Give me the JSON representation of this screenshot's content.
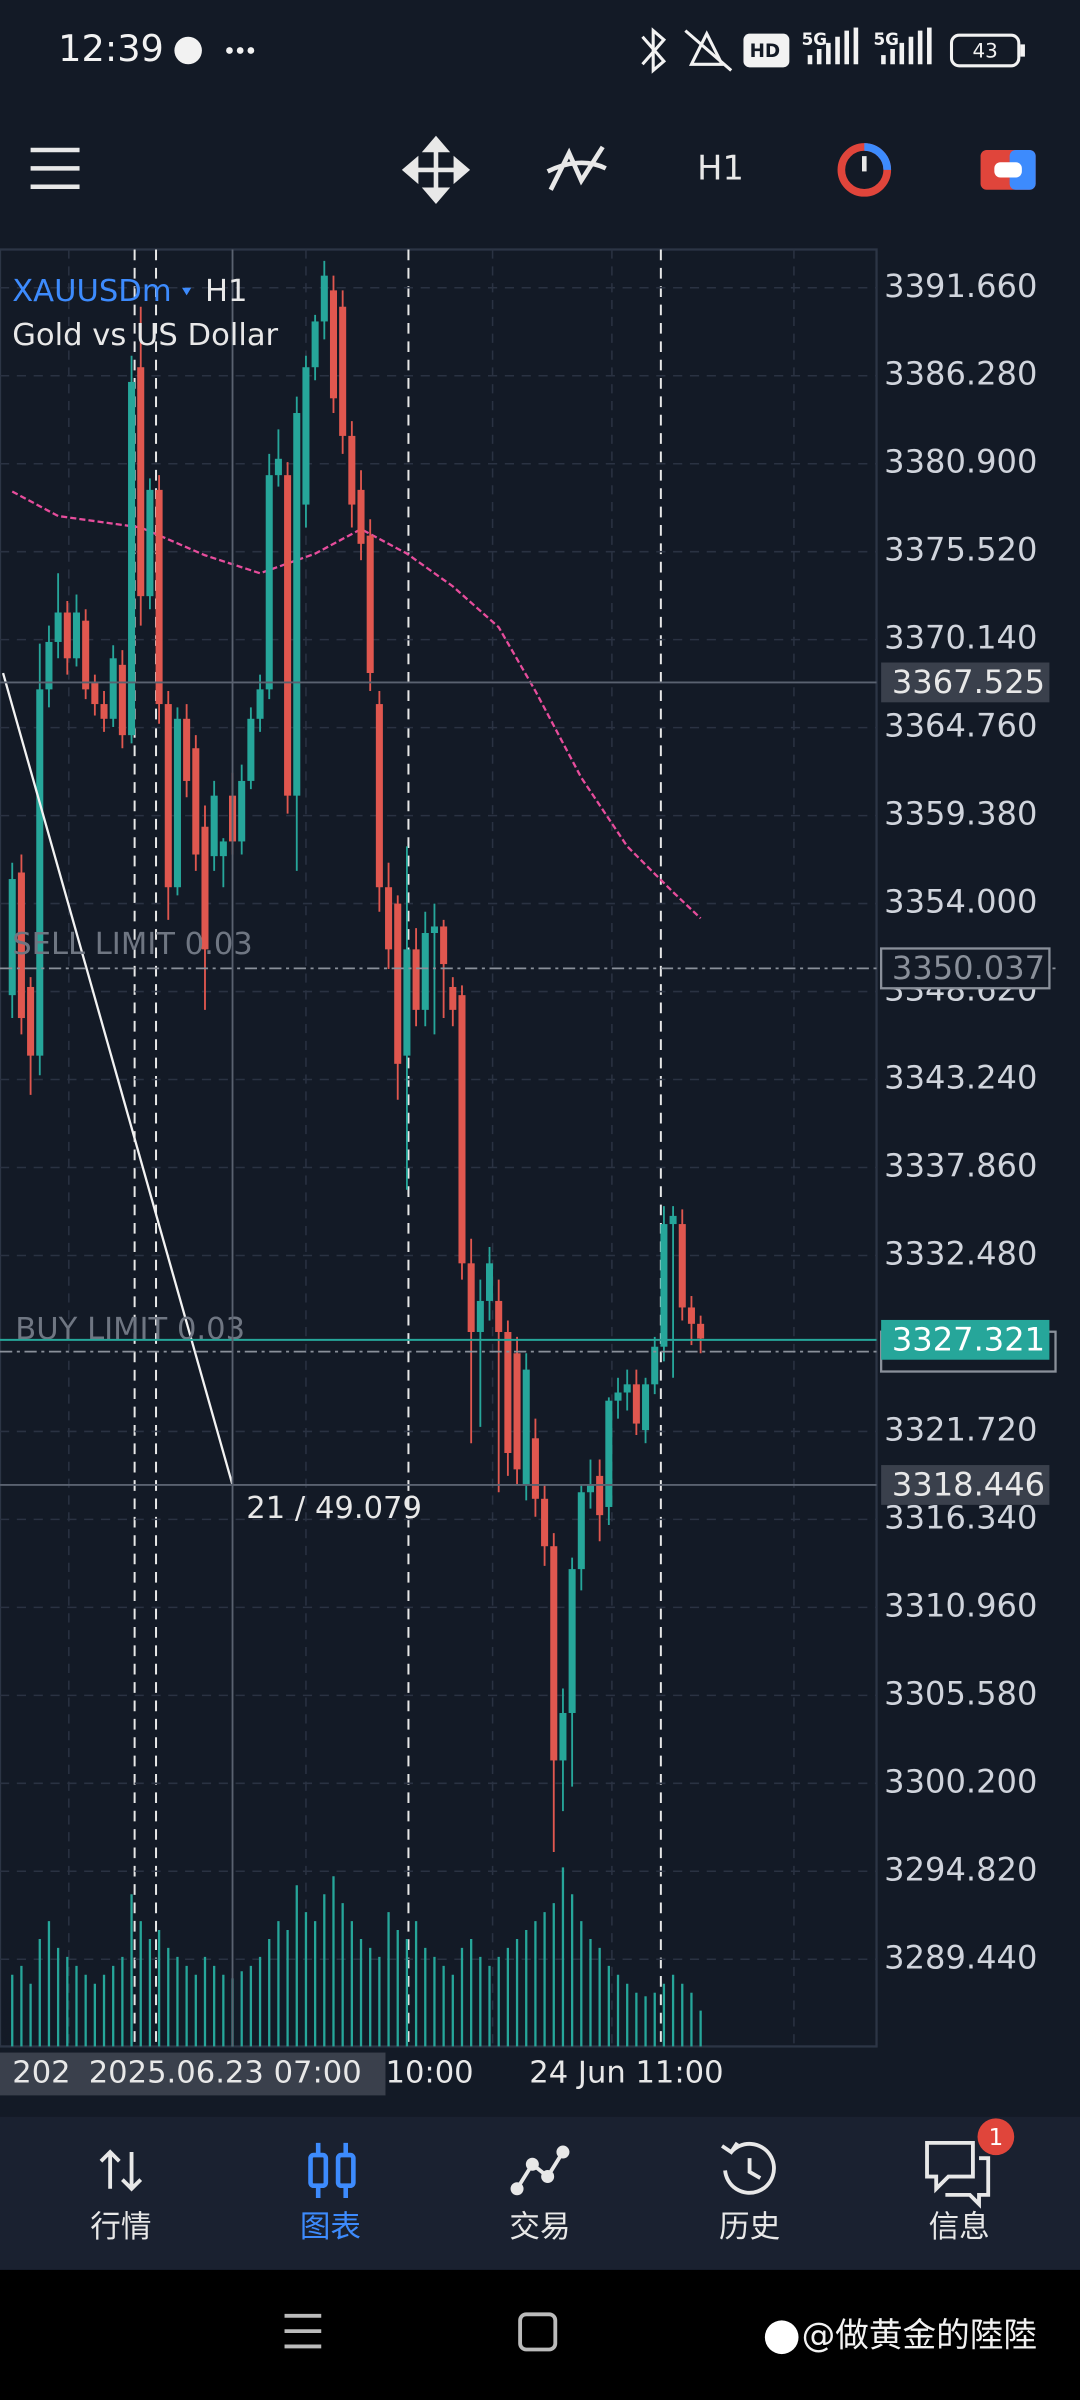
{
  "status_bar": {
    "time": "12:39",
    "network": [
      "5G",
      "5G"
    ],
    "hd": "HD",
    "battery": "43"
  },
  "toolbar": {
    "timeframe": "H1"
  },
  "chart": {
    "symbol": "XAUUSDm",
    "timeframe": "H1",
    "description": "Gold vs US Dollar",
    "ylim": [
      3284.11,
      3394.0
    ],
    "yticks": [
      {
        "value": 3391.66,
        "label": "3391.660"
      },
      {
        "value": 3386.28,
        "label": "3386.280"
      },
      {
        "value": 3380.9,
        "label": "3380.900"
      },
      {
        "value": 3375.52,
        "label": "3375.520"
      },
      {
        "value": 3370.14,
        "label": "3370.140"
      },
      {
        "value": 3364.76,
        "label": "3364.760"
      },
      {
        "value": 3359.38,
        "label": "3359.380"
      },
      {
        "value": 3354,
        "label": "3354.000"
      },
      {
        "value": 3348.62,
        "label": "3348.620"
      },
      {
        "value": 3343.24,
        "label": "3343.240"
      },
      {
        "value": 3337.86,
        "label": "3337.860"
      },
      {
        "value": 3332.48,
        "label": "3332.480"
      },
      {
        "value": 3321.72,
        "label": "3321.720"
      },
      {
        "value": 3316.34,
        "label": "3316.340"
      },
      {
        "value": 3310.96,
        "label": "3310.960"
      },
      {
        "value": 3305.58,
        "label": "3305.580"
      },
      {
        "value": 3300.2,
        "label": "3300.200"
      },
      {
        "value": 3294.82,
        "label": "3294.820"
      },
      {
        "value": 3289.44,
        "label": "3289.440"
      }
    ],
    "candles": [
      [
        3348.4,
        3356.5,
        3347.0,
        3355.5
      ],
      [
        3355.9,
        3357.0,
        3346.0,
        3347.0
      ],
      [
        3348.9,
        3349.5,
        3342.3,
        3344.7
      ],
      [
        3344.7,
        3369.9,
        3343.5,
        3367.1
      ],
      [
        3367.1,
        3371.0,
        3366.0,
        3370.0
      ],
      [
        3370.0,
        3374.2,
        3369.0,
        3371.8
      ],
      [
        3371.8,
        3372.5,
        3368.0,
        3369.0
      ],
      [
        3369.0,
        3372.9,
        3368.5,
        3371.8
      ],
      [
        3371.3,
        3372.0,
        3366.5,
        3367.1
      ],
      [
        3367.5,
        3368.0,
        3365.5,
        3366.2
      ],
      [
        3366.2,
        3367.0,
        3364.5,
        3365.3
      ],
      [
        3365.3,
        3369.8,
        3364.8,
        3369.0
      ],
      [
        3368.6,
        3369.5,
        3363.5,
        3364.3
      ],
      [
        3364.3,
        3387.5,
        3363.8,
        3385.9
      ],
      [
        3386.8,
        3390.5,
        3371.0,
        3372.8
      ],
      [
        3372.8,
        3380.0,
        3372.0,
        3379.3
      ],
      [
        3379.3,
        3380.2,
        3365.0,
        3366.2
      ],
      [
        3366.2,
        3367.0,
        3353.0,
        3355.0
      ],
      [
        3355.0,
        3366.0,
        3354.5,
        3365.3
      ],
      [
        3365.3,
        3366.2,
        3360.5,
        3361.5
      ],
      [
        3363.5,
        3364.3,
        3356.0,
        3357.0
      ],
      [
        3358.7,
        3360.0,
        3347.5,
        3351.2
      ],
      [
        3356.9,
        3361.5,
        3356.0,
        3360.6
      ],
      [
        3356.9,
        3358.0,
        3355.0,
        3357.8
      ],
      [
        3360.6,
        3362.0,
        3357.0,
        3357.8
      ],
      [
        3357.8,
        3362.5,
        3357.0,
        3361.5
      ],
      [
        3361.5,
        3366.0,
        3361.0,
        3365.3
      ],
      [
        3365.3,
        3368.0,
        3364.5,
        3367.1
      ],
      [
        3367.1,
        3381.5,
        3366.5,
        3380.2
      ],
      [
        3380.2,
        3383.0,
        3379.5,
        3381.2
      ],
      [
        3380.2,
        3381.0,
        3359.5,
        3360.6
      ],
      [
        3360.6,
        3385.0,
        3356.0,
        3384.0
      ],
      [
        3378.4,
        3387.5,
        3377.0,
        3386.8
      ],
      [
        3386.8,
        3390.0,
        3386.0,
        3389.6
      ],
      [
        3389.6,
        3393.3,
        3388.5,
        3392.4
      ],
      [
        3391.5,
        3392.4,
        3384.0,
        3384.9
      ],
      [
        3390.5,
        3391.5,
        3381.5,
        3382.6
      ],
      [
        3382.6,
        3383.5,
        3377.0,
        3378.4
      ],
      [
        3379.3,
        3380.5,
        3375.0,
        3376.0
      ],
      [
        3376.5,
        3377.5,
        3367.0,
        3368.1
      ],
      [
        3366.2,
        3367.0,
        3353.5,
        3355.0
      ],
      [
        3355.0,
        3356.5,
        3350.0,
        3351.2
      ],
      [
        3354.0,
        3354.5,
        3342.0,
        3344.2
      ],
      [
        3344.7,
        3357.5,
        3336.5,
        3351.2
      ],
      [
        3351.2,
        3352.5,
        3346.5,
        3347.5
      ],
      [
        3347.5,
        3353.5,
        3346.5,
        3352.2
      ],
      [
        3352.2,
        3354.0,
        3346.0,
        3352.6
      ],
      [
        3352.6,
        3353.0,
        3347.0,
        3350.3
      ],
      [
        3348.9,
        3349.5,
        3346.5,
        3347.5
      ],
      [
        3348.4,
        3349.0,
        3331.0,
        3332.0
      ],
      [
        3332.0,
        3333.5,
        3321.0,
        3327.8
      ],
      [
        3327.8,
        3331.0,
        3322.0,
        3329.7
      ],
      [
        3329.7,
        3333.0,
        3328.5,
        3332.0
      ],
      [
        3329.7,
        3331.0,
        3318.0,
        3327.8
      ],
      [
        3327.8,
        3328.5,
        3319.0,
        3320.4
      ],
      [
        3326.5,
        3327.5,
        3318.5,
        3319.4
      ],
      [
        3318.5,
        3326.5,
        3317.5,
        3325.5
      ],
      [
        3321.3,
        3322.5,
        3316.5,
        3317.6
      ],
      [
        3317.6,
        3318.5,
        3313.5,
        3314.7
      ],
      [
        3314.7,
        3315.5,
        3296.0,
        3301.6
      ],
      [
        3301.6,
        3306.0,
        3298.5,
        3304.5
      ],
      [
        3304.5,
        3314.0,
        3300.0,
        3313.3
      ],
      [
        3313.3,
        3318.5,
        3312.0,
        3318.0
      ],
      [
        3318.0,
        3320.0,
        3317.0,
        3318.5
      ],
      [
        3319.0,
        3320.0,
        3315.0,
        3316.6
      ],
      [
        3317.1,
        3323.8,
        3316.0,
        3323.6
      ],
      [
        3323.6,
        3325.0,
        3322.5,
        3324.1
      ],
      [
        3324.1,
        3325.5,
        3323.0,
        3324.6
      ],
      [
        3324.6,
        3325.5,
        3321.5,
        3322.2
      ],
      [
        3321.8,
        3325.0,
        3321.0,
        3324.6
      ],
      [
        3324.6,
        3327.5,
        3324.0,
        3326.9
      ],
      [
        3326.9,
        3335.5,
        3326.0,
        3334.4
      ],
      [
        3334.4,
        3335.5,
        3325.0,
        3334.9
      ],
      [
        3334.4,
        3335.3,
        3328.5,
        3329.3
      ],
      [
        3329.3,
        3330.0,
        3327.0,
        3328.3
      ],
      [
        3328.3,
        3328.8,
        3326.5,
        3327.4
      ]
    ],
    "volumes": [
      40,
      45,
      35,
      60,
      70,
      55,
      50,
      45,
      40,
      35,
      40,
      45,
      50,
      85,
      70,
      60,
      65,
      55,
      50,
      45,
      40,
      50,
      45,
      40,
      38,
      42,
      45,
      50,
      60,
      70,
      65,
      90,
      75,
      70,
      85,
      95,
      80,
      70,
      60,
      55,
      50,
      75,
      65,
      60,
      70,
      55,
      50,
      45,
      40,
      55,
      60,
      50,
      45,
      50,
      55,
      60,
      65,
      70,
      75,
      80,
      100,
      85,
      70,
      60,
      55,
      45,
      40,
      35,
      30,
      28,
      30,
      35,
      40,
      35,
      30,
      20
    ],
    "moving_average": {
      "x": [
        0,
        5,
        14,
        21,
        27,
        33,
        38,
        43,
        48,
        53,
        57,
        62,
        67,
        72,
        75
      ],
      "values": [
        3379.2,
        3377.7,
        3377.0,
        3375.3,
        3374.2,
        3375.4,
        3376.9,
        3375.4,
        3373.4,
        3370.9,
        3367.0,
        3361.7,
        3357.5,
        3354.7,
        3353.1
      ]
    },
    "trendline": {
      "x": [
        -1,
        24
      ],
      "values": [
        3368.1,
        3318.446
      ]
    },
    "price_line": 3367.525,
    "sell_limit": {
      "label": "SELL LIMIT 0.03",
      "value": 3350.037
    },
    "buy_limit": {
      "label": "BUY LIMIT 0.03",
      "value": 3326.6
    },
    "bid": 3327.321,
    "crosshair": {
      "index": 24,
      "value": 3318.446,
      "info": "21 / 49.079"
    },
    "time_labels": [
      "202",
      "2025.06.23 07:00",
      "10:00",
      "24 Jun 11:00"
    ]
  },
  "nav": [
    {
      "label": "行情"
    },
    {
      "label": "图表"
    },
    {
      "label": "交易"
    },
    {
      "label": "历史"
    },
    {
      "label": "信息",
      "badge": "1"
    }
  ],
  "watermark": "@做黄金的陸陸"
}
